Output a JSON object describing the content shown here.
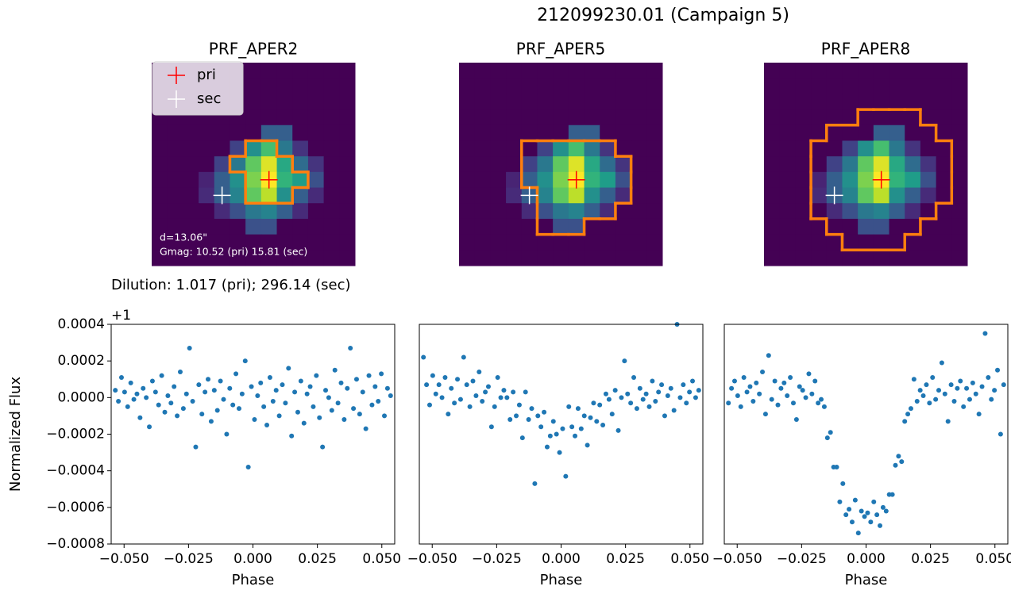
{
  "title": "212099230.01 (Campaign 5)",
  "image": [
    [
      0,
      0,
      0,
      0,
      0,
      0,
      0,
      0,
      0,
      0,
      0,
      0,
      0
    ],
    [
      0,
      0,
      0,
      0,
      0,
      0,
      0,
      0,
      0,
      0,
      0,
      0,
      0
    ],
    [
      0,
      0,
      0,
      0,
      0,
      0,
      0,
      0,
      0,
      0,
      0,
      0,
      0
    ],
    [
      0,
      0,
      0,
      0,
      0,
      0,
      0,
      0,
      0,
      0,
      0,
      0,
      0
    ],
    [
      0,
      0,
      0,
      0,
      0,
      0,
      0,
      0.3,
      0.3,
      0,
      0,
      0,
      0
    ],
    [
      0,
      0,
      0,
      0,
      0,
      0.2,
      0.5,
      0.7,
      0.4,
      0.15,
      0,
      0,
      0
    ],
    [
      0,
      0,
      0,
      0,
      0.2,
      0.4,
      0.75,
      0.95,
      0.6,
      0.35,
      0.15,
      0,
      0
    ],
    [
      0,
      0,
      0,
      0.1,
      0.3,
      0.5,
      0.8,
      1.0,
      0.65,
      0.55,
      0.25,
      0,
      0
    ],
    [
      0,
      0,
      0,
      0.12,
      0.3,
      0.45,
      0.75,
      0.9,
      0.5,
      0.3,
      0.12,
      0,
      0
    ],
    [
      0,
      0,
      0,
      0,
      0.12,
      0.25,
      0.4,
      0.45,
      0.3,
      0.12,
      0,
      0,
      0
    ],
    [
      0,
      0,
      0,
      0,
      0,
      0,
      0.25,
      0.25,
      0,
      0,
      0,
      0,
      0
    ],
    [
      0,
      0,
      0,
      0,
      0,
      0,
      0,
      0,
      0,
      0,
      0,
      0,
      0
    ],
    [
      0,
      0,
      0,
      0,
      0,
      0,
      0,
      0,
      0,
      0,
      0,
      0,
      0
    ]
  ],
  "chart_data": [
    {
      "type": "image",
      "title": "PRF_APER2",
      "colormap": [
        "#440154",
        "#482878",
        "#3e4989",
        "#31688e",
        "#26828e",
        "#1f9e89",
        "#35b779",
        "#6ece58",
        "#b5de2b",
        "#fde725"
      ],
      "aperture_color": "#ff7f0e",
      "aperture": [
        [
          5,
          6,
          7
        ],
        [
          6,
          5,
          8
        ],
        [
          7,
          6,
          9
        ],
        [
          8,
          6,
          8
        ]
      ],
      "stars": [
        {
          "name": "pri",
          "color": "#ff0000",
          "x": 7,
          "y": 7
        },
        {
          "name": "sec",
          "color": "#ffffff",
          "x": 4,
          "y": 8
        }
      ],
      "legend": true,
      "annotations": [
        "d=13.06\"",
        "Gmag: 10.52 (pri) 15.81 (sec)"
      ],
      "caption": "Dilution: 1.017 (pri); 296.14 (sec)"
    },
    {
      "type": "image",
      "title": "PRF_APER5",
      "colormap": [
        "#440154",
        "#482878",
        "#3e4989",
        "#31688e",
        "#26828e",
        "#1f9e89",
        "#35b779",
        "#6ece58",
        "#b5de2b",
        "#fde725"
      ],
      "aperture_color": "#ff7f0e",
      "aperture": [
        [
          5,
          4,
          9
        ],
        [
          6,
          4,
          10
        ],
        [
          7,
          4,
          10
        ],
        [
          8,
          5,
          10
        ],
        [
          9,
          5,
          9
        ],
        [
          10,
          5,
          7
        ]
      ],
      "stars": [
        {
          "name": "pri",
          "color": "#ff0000",
          "x": 7,
          "y": 7
        },
        {
          "name": "sec",
          "color": "#ffffff",
          "x": 4,
          "y": 8
        }
      ],
      "legend": false
    },
    {
      "type": "image",
      "title": "PRF_APER8",
      "colormap": [
        "#440154",
        "#482878",
        "#3e4989",
        "#31688e",
        "#26828e",
        "#1f9e89",
        "#35b779",
        "#6ece58",
        "#b5de2b",
        "#fde725"
      ],
      "aperture_color": "#ff7f0e",
      "aperture": [
        [
          3,
          6,
          9
        ],
        [
          4,
          4,
          10
        ],
        [
          5,
          3,
          11
        ],
        [
          6,
          3,
          11
        ],
        [
          7,
          3,
          11
        ],
        [
          8,
          3,
          11
        ],
        [
          9,
          3,
          10
        ],
        [
          10,
          4,
          9
        ],
        [
          11,
          5,
          8
        ]
      ],
      "stars": [
        {
          "name": "pri",
          "color": "#ff0000",
          "x": 7,
          "y": 7
        },
        {
          "name": "sec",
          "color": "#ffffff",
          "x": 4,
          "y": 8
        }
      ],
      "legend": false
    },
    {
      "type": "scatter",
      "color": "#1f77b4",
      "xlabel": "Phase",
      "ylabel": "Normalized Flux",
      "offset_text": "+1",
      "xlim": [
        -0.055,
        0.055
      ],
      "ylim": [
        -0.0008,
        0.0004
      ],
      "xticks": [
        {
          "value": -0.05,
          "label": "−0.050"
        },
        {
          "value": -0.025,
          "label": "−0.025"
        },
        {
          "value": 0,
          "label": "0.000"
        },
        {
          "value": 0.025,
          "label": "0.025"
        },
        {
          "value": 0.05,
          "label": "0.050"
        }
      ],
      "yticks": [
        {
          "value": -0.0008,
          "label": "−0.0008"
        },
        {
          "value": -0.0006,
          "label": "−0.0006"
        },
        {
          "value": -0.0004,
          "label": "−0.0004"
        },
        {
          "value": -0.0002,
          "label": "−0.0002"
        },
        {
          "value": 0,
          "label": "0.0000"
        },
        0.0002,
        0.0004
      ],
      "x": [
        -0.0534,
        -0.0522,
        -0.051,
        -0.0498,
        -0.0486,
        -0.0474,
        -0.0462,
        -0.045,
        -0.0438,
        -0.0426,
        -0.0414,
        -0.0402,
        -0.039,
        -0.0378,
        -0.0366,
        -0.0354,
        -0.0342,
        -0.033,
        -0.0318,
        -0.0306,
        -0.0294,
        -0.0282,
        -0.027,
        -0.0258,
        -0.0246,
        -0.0234,
        -0.0222,
        -0.021,
        -0.0198,
        -0.0186,
        -0.0174,
        -0.0162,
        -0.015,
        -0.0138,
        -0.0126,
        -0.0114,
        -0.0102,
        -0.009,
        -0.0078,
        -0.0066,
        -0.0054,
        -0.0042,
        -0.003,
        -0.0018,
        -0.0006,
        0.0006,
        0.0018,
        0.003,
        0.0042,
        0.0054,
        0.0066,
        0.0078,
        0.009,
        0.0102,
        0.0114,
        0.0126,
        0.0138,
        0.015,
        0.0162,
        0.0174,
        0.0186,
        0.0198,
        0.021,
        0.0222,
        0.0234,
        0.0246,
        0.0258,
        0.027,
        0.0282,
        0.0294,
        0.0306,
        0.0318,
        0.033,
        0.0342,
        0.0354,
        0.0366,
        0.0378,
        0.039,
        0.0402,
        0.0414,
        0.0426,
        0.0438,
        0.045,
        0.0462,
        0.0474,
        0.0486,
        0.0498,
        0.051,
        0.0522,
        0.0534
      ],
      "values": [
        4e-05,
        -2e-05,
        0.00011,
        3e-05,
        -5e-05,
        8e-05,
        -1e-05,
        2e-05,
        -0.00011,
        5e-05,
        0,
        -0.00016,
        9e-05,
        3e-05,
        -4e-05,
        0.00012,
        -8e-05,
        1e-05,
        -3e-05,
        6e-05,
        -0.0001,
        0.00014,
        -6e-05,
        2e-05,
        0.00027,
        -2e-05,
        -0.00027,
        7e-05,
        -9e-05,
        3e-05,
        0.0001,
        -0.00013,
        4e-05,
        -7e-05,
        9e-05,
        -1e-05,
        -0.0002,
        5e-05,
        -4e-05,
        0.00013,
        -6e-05,
        2e-05,
        0.0002,
        -0.00038,
        6e-05,
        -0.00012,
        1e-05,
        8e-05,
        -5e-05,
        -0.00015,
        0.00011,
        -2e-05,
        4e-05,
        -0.0001,
        7e-05,
        -3e-05,
        0.00016,
        -0.00021,
        3e-05,
        -8e-05,
        9e-05,
        -0.00014,
        2e-05,
        6e-05,
        -5e-05,
        0.00012,
        -0.00011,
        -0.00027,
        4e-05,
        0,
        -7e-05,
        0.00015,
        -3e-05,
        8e-05,
        -0.00012,
        5e-05,
        0.00027,
        -6e-05,
        0.0001,
        -9e-05,
        3e-05,
        -0.00017,
        0.00012,
        -4e-05,
        6e-05,
        -2e-05,
        0.00013,
        -0.0001,
        5e-05,
        1e-05
      ]
    },
    {
      "type": "scatter",
      "color": "#1f77b4",
      "xlabel": "Phase",
      "xlim": [
        -0.055,
        0.055
      ],
      "ylim": [
        -0.0008,
        0.0004
      ],
      "xticks": [
        {
          "value": -0.05,
          "label": "−0.050"
        },
        {
          "value": -0.025,
          "label": "−0.025"
        },
        {
          "value": 0,
          "label": "0.000"
        },
        {
          "value": 0.025,
          "label": "0.025"
        },
        {
          "value": 0.05,
          "label": "0.050"
        }
      ],
      "x": [
        -0.0534,
        -0.0522,
        -0.051,
        -0.0498,
        -0.0486,
        -0.0474,
        -0.0462,
        -0.045,
        -0.0438,
        -0.0426,
        -0.0414,
        -0.0402,
        -0.039,
        -0.0378,
        -0.0366,
        -0.0354,
        -0.0342,
        -0.033,
        -0.0318,
        -0.0306,
        -0.0294,
        -0.0282,
        -0.027,
        -0.0258,
        -0.0246,
        -0.0234,
        -0.0222,
        -0.021,
        -0.0198,
        -0.0186,
        -0.0174,
        -0.0162,
        -0.015,
        -0.0138,
        -0.0126,
        -0.0114,
        -0.0102,
        -0.009,
        -0.0078,
        -0.0066,
        -0.0054,
        -0.0042,
        -0.003,
        -0.0018,
        -0.0006,
        0.0006,
        0.0018,
        0.003,
        0.0042,
        0.0054,
        0.0066,
        0.0078,
        0.009,
        0.0102,
        0.0114,
        0.0126,
        0.0138,
        0.015,
        0.0162,
        0.0174,
        0.0186,
        0.0198,
        0.021,
        0.0222,
        0.0234,
        0.0246,
        0.0258,
        0.027,
        0.0282,
        0.0294,
        0.0306,
        0.0318,
        0.033,
        0.0342,
        0.0354,
        0.0366,
        0.0378,
        0.039,
        0.0402,
        0.0414,
        0.0426,
        0.0438,
        0.045,
        0.0462,
        0.0474,
        0.0486,
        0.0498,
        0.051,
        0.0522,
        0.0534
      ],
      "values": [
        0.00022,
        7e-05,
        -4e-05,
        0.00012,
        2e-05,
        7e-05,
        0,
        0.00011,
        -9e-05,
        5e-05,
        -3e-05,
        0.0001,
        -1e-05,
        0.00022,
        7e-05,
        -5e-05,
        9e-05,
        1e-05,
        0.00014,
        -2e-05,
        3e-05,
        6e-05,
        -0.00016,
        -5e-05,
        0.00011,
        0,
        4e-05,
        0,
        -0.00012,
        3e-05,
        -0.0001,
        -4e-05,
        -0.00022,
        3e-05,
        -0.00012,
        -6e-05,
        -0.00047,
        -0.0001,
        -0.00016,
        -8e-05,
        -0.00027,
        -0.00021,
        -0.00013,
        -0.0002,
        -0.0003,
        -0.00017,
        -0.00043,
        -5e-05,
        -0.00016,
        -0.00021,
        -6e-05,
        -0.00017,
        -0.0001,
        -0.00026,
        -0.00011,
        -3e-05,
        -0.00013,
        -4e-05,
        -0.00015,
        2e-05,
        -1e-05,
        -9e-05,
        4e-05,
        -0.00018,
        0,
        0.0002,
        2e-05,
        -3e-05,
        0.00011,
        -6e-05,
        5e-05,
        -1e-05,
        2e-05,
        -5e-05,
        9e-05,
        -2e-05,
        3e-05,
        7e-05,
        -0.0001,
        1e-05,
        5e-05,
        -7e-05,
        0.0004,
        0,
        7e-05,
        -3e-05,
        3e-05,
        9e-05,
        0,
        4e-05
      ]
    },
    {
      "type": "scatter",
      "color": "#1f77b4",
      "xlabel": "Phase",
      "xlim": [
        -0.055,
        0.055
      ],
      "ylim": [
        -0.0008,
        0.0004
      ],
      "xticks": [
        {
          "value": -0.05,
          "label": "−0.050"
        },
        {
          "value": -0.025,
          "label": "−0.025"
        },
        {
          "value": 0,
          "label": "0.000"
        },
        {
          "value": 0.025,
          "label": "0.025"
        },
        {
          "value": 0.05,
          "label": "0.050"
        }
      ],
      "x": [
        -0.0534,
        -0.0522,
        -0.051,
        -0.0498,
        -0.0486,
        -0.0474,
        -0.0462,
        -0.045,
        -0.0438,
        -0.0426,
        -0.0414,
        -0.0402,
        -0.039,
        -0.0378,
        -0.0366,
        -0.0354,
        -0.0342,
        -0.033,
        -0.0318,
        -0.0306,
        -0.0294,
        -0.0282,
        -0.027,
        -0.0258,
        -0.0246,
        -0.0234,
        -0.0222,
        -0.021,
        -0.0198,
        -0.0186,
        -0.0174,
        -0.0162,
        -0.015,
        -0.0138,
        -0.0126,
        -0.0114,
        -0.0102,
        -0.009,
        -0.0078,
        -0.0066,
        -0.0054,
        -0.0042,
        -0.003,
        -0.0018,
        -0.0006,
        0.0006,
        0.0018,
        0.003,
        0.0042,
        0.0054,
        0.0066,
        0.0078,
        0.009,
        0.0102,
        0.0114,
        0.0126,
        0.0138,
        0.015,
        0.0162,
        0.0174,
        0.0186,
        0.0198,
        0.021,
        0.0222,
        0.0234,
        0.0246,
        0.0258,
        0.027,
        0.0282,
        0.0294,
        0.0306,
        0.0318,
        0.033,
        0.0342,
        0.0354,
        0.0366,
        0.0378,
        0.039,
        0.0402,
        0.0414,
        0.0426,
        0.0438,
        0.045,
        0.0462,
        0.0474,
        0.0486,
        0.0498,
        0.051,
        0.0522,
        0.0534
      ],
      "values": [
        -3e-05,
        5e-05,
        9e-05,
        1e-05,
        -5e-05,
        0.00011,
        3e-05,
        6e-05,
        -2e-05,
        8e-05,
        2e-05,
        0.00014,
        -9e-05,
        0.00023,
        -1e-05,
        9e-05,
        -4e-05,
        5e-05,
        8e-05,
        1e-05,
        0.00011,
        -3e-05,
        -0.00012,
        6e-05,
        4e-05,
        0,
        0.00013,
        2e-05,
        9e-05,
        -3e-05,
        -1e-05,
        -5e-05,
        -0.00022,
        -0.00019,
        -0.00038,
        -0.00038,
        -0.00057,
        -0.00047,
        -0.00064,
        -0.00061,
        -0.00068,
        -0.00056,
        -0.00074,
        -0.00062,
        -0.00065,
        -0.00063,
        -0.00068,
        -0.00057,
        -0.00064,
        -0.0007,
        -0.0006,
        -0.00062,
        -0.00053,
        -0.00053,
        -0.00037,
        -0.00032,
        -0.00035,
        -0.00013,
        -9e-05,
        -6e-05,
        0.0001,
        -2e-05,
        4e-05,
        1e-05,
        7e-05,
        -3e-05,
        0.00011,
        -1e-05,
        4e-05,
        0.00019,
        2e-05,
        -0.00013,
        7e-05,
        -2e-05,
        5e-05,
        9e-05,
        -5e-05,
        5e-05,
        -1e-05,
        8e-05,
        2e-05,
        -9e-05,
        6e-05,
        0.00035,
        0.00011,
        -1e-05,
        4e-05,
        0.00015,
        -0.0002,
        7e-05
      ]
    }
  ]
}
